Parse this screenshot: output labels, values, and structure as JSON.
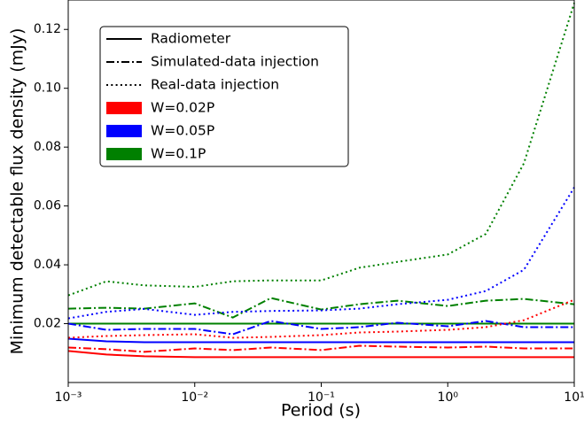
{
  "chart_data": {
    "type": "line",
    "xlabel": "Period (s)",
    "ylabel": "Minimum detectable flux density (mJy)",
    "xscale": "log",
    "x": [
      0.001,
      0.002,
      0.004,
      0.01,
      0.02,
      0.04,
      0.1,
      0.2,
      0.4,
      1,
      2,
      4,
      10
    ],
    "xlim": [
      0.001,
      10
    ],
    "xticks": [
      {
        "value": 0.001,
        "label": "10⁻³"
      },
      {
        "value": 0.01,
        "label": "10⁻²"
      },
      {
        "value": 0.1,
        "label": "10⁻¹"
      },
      {
        "value": 1,
        "label": "10⁰"
      },
      {
        "value": 10,
        "label": "10¹"
      }
    ],
    "ylim": [
      0,
      0.13
    ],
    "yticks": [
      0.02,
      0.04,
      0.06,
      0.08,
      {
        "value": 0.1,
        "label": "0.10"
      },
      0.12
    ],
    "legend_location": "upper left",
    "legend": {
      "styles": [
        {
          "label": "Radiometer",
          "linestyle": "solid"
        },
        {
          "label": "Simulated-data injection",
          "linestyle": "dashdot"
        },
        {
          "label": "Real-data injection",
          "linestyle": "dotted"
        }
      ],
      "colors": [
        {
          "label": "W=0.02P",
          "color": "#ff0000"
        },
        {
          "label": "W=0.05P",
          "color": "#0000ff"
        },
        {
          "label": "W=0.1P",
          "color": "#008000"
        }
      ]
    },
    "series": [
      {
        "linestyle": "solid",
        "color": "#ff0000",
        "values": [
          0.0107,
          0.0095,
          0.0089,
          0.0086,
          0.0086,
          0.0086,
          0.0086,
          0.0086,
          0.0086,
          0.0086,
          0.0086,
          0.0086,
          0.0086
        ]
      },
      {
        "linestyle": "solid",
        "color": "#0000ff",
        "values": [
          0.0149,
          0.014,
          0.0137,
          0.0137,
          0.0137,
          0.0137,
          0.0137,
          0.0137,
          0.0137,
          0.0137,
          0.0137,
          0.0137,
          0.0137
        ]
      },
      {
        "linestyle": "solid",
        "color": "#008000",
        "values": [
          0.02,
          0.02,
          0.02,
          0.02,
          0.02,
          0.02,
          0.02,
          0.02,
          0.02,
          0.02,
          0.02,
          0.02,
          0.02
        ]
      },
      {
        "linestyle": "dashdot",
        "color": "#ff0000",
        "values": [
          0.0119,
          0.0113,
          0.0104,
          0.0116,
          0.011,
          0.0119,
          0.011,
          0.0125,
          0.0122,
          0.0119,
          0.0122,
          0.0116,
          0.0116
        ]
      },
      {
        "linestyle": "dashdot",
        "color": "#0000ff",
        "values": [
          0.02,
          0.0179,
          0.0182,
          0.0182,
          0.0164,
          0.0209,
          0.0182,
          0.0188,
          0.0203,
          0.0191,
          0.0209,
          0.0188,
          0.0188
        ]
      },
      {
        "linestyle": "dashdot",
        "color": "#008000",
        "values": [
          0.0251,
          0.0254,
          0.0251,
          0.0269,
          0.0221,
          0.0287,
          0.0248,
          0.0266,
          0.0278,
          0.026,
          0.0278,
          0.0284,
          0.0266
        ]
      },
      {
        "linestyle": "dotted",
        "color": "#ff0000",
        "values": [
          0.0152,
          0.0158,
          0.0161,
          0.0164,
          0.0152,
          0.0155,
          0.0161,
          0.017,
          0.0173,
          0.0179,
          0.0188,
          0.0212,
          0.0281
        ]
      },
      {
        "linestyle": "dotted",
        "color": "#0000ff",
        "values": [
          0.0218,
          0.024,
          0.025,
          0.023,
          0.024,
          0.0243,
          0.0245,
          0.0251,
          0.0266,
          0.0281,
          0.0311,
          0.0383,
          0.0663
        ]
      },
      {
        "linestyle": "dotted",
        "color": "#008000",
        "values": [
          0.0296,
          0.0344,
          0.033,
          0.0325,
          0.0344,
          0.0347,
          0.0347,
          0.039,
          0.041,
          0.0435,
          0.0505,
          0.0745,
          0.129
        ]
      }
    ]
  }
}
